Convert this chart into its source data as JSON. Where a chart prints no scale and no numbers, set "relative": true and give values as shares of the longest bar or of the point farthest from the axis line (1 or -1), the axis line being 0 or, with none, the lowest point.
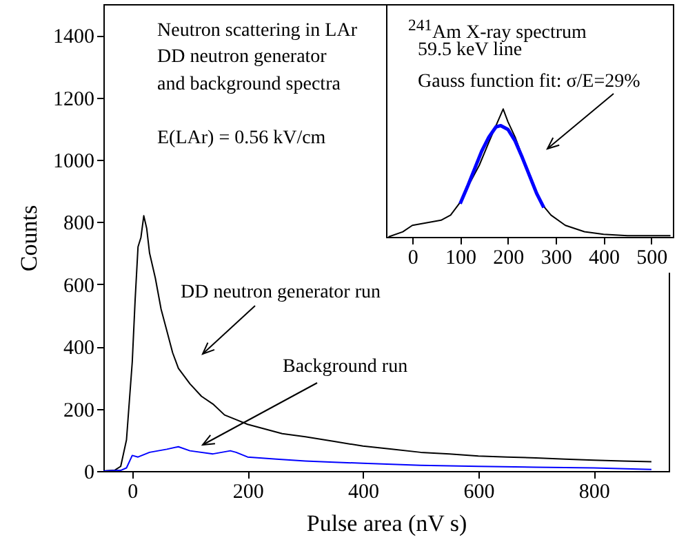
{
  "chart_data": [
    {
      "type": "line",
      "xlabel": "Pulse area (nV s)",
      "ylabel": "Counts",
      "xlim": [
        -50,
        930
      ],
      "ylim": [
        0,
        1500
      ],
      "xticks": [
        0,
        200,
        400,
        600,
        800
      ],
      "yticks": [
        0,
        200,
        400,
        600,
        800,
        1000,
        1200,
        1400
      ],
      "series": [
        {
          "color": "#000000",
          "x": [
            -50,
            -30,
            -20,
            -10,
            0,
            5,
            10,
            15,
            20,
            25,
            30,
            40,
            50,
            60,
            70,
            80,
            100,
            120,
            140,
            160,
            180,
            200,
            230,
            260,
            300,
            350,
            400,
            450,
            500,
            550,
            600,
            650,
            700,
            750,
            800,
            850,
            900
          ],
          "values": [
            0,
            3,
            15,
            100,
            350,
            550,
            720,
            750,
            820,
            780,
            700,
            620,
            520,
            450,
            380,
            330,
            280,
            240,
            215,
            180,
            165,
            150,
            135,
            120,
            110,
            95,
            80,
            70,
            60,
            55,
            48,
            45,
            42,
            38,
            35,
            32,
            30
          ]
        },
        {
          "color": "#0000ff",
          "x": [
            -50,
            -20,
            -10,
            0,
            10,
            30,
            60,
            80,
            100,
            140,
            170,
            180,
            200,
            250,
            300,
            350,
            400,
            500,
            600,
            700,
            800,
            900
          ],
          "values": [
            0,
            2,
            10,
            50,
            45,
            60,
            70,
            78,
            65,
            55,
            65,
            60,
            45,
            38,
            32,
            28,
            25,
            18,
            15,
            12,
            10,
            5
          ]
        }
      ],
      "annotations": [
        "Neutron scattering in LAr",
        "DD neutron generator",
        "and background spectra",
        "E(LAr) = 0.56 kV/cm",
        "DD neutron generator run",
        "Background run"
      ]
    },
    {
      "type": "line",
      "relative": true,
      "xlim": [
        -55,
        545
      ],
      "xticks": [
        0,
        100,
        200,
        300,
        400,
        500
      ],
      "series": [
        {
          "color": "#000000",
          "x": [
            -50,
            -20,
            0,
            30,
            60,
            80,
            100,
            120,
            140,
            160,
            175,
            190,
            200,
            215,
            230,
            250,
            270,
            290,
            320,
            360,
            400,
            450,
            500,
            540
          ],
          "values": [
            0,
            0.04,
            0.09,
            0.11,
            0.13,
            0.17,
            0.27,
            0.42,
            0.56,
            0.74,
            0.87,
            1,
            0.9,
            0.78,
            0.63,
            0.42,
            0.26,
            0.17,
            0.09,
            0.04,
            0.02,
            0.01,
            0.01,
            0.01
          ]
        },
        {
          "color": "#0000ff",
          "x": [
            100,
            115,
            130,
            145,
            160,
            175,
            185,
            200,
            215,
            230,
            245,
            260,
            275
          ],
          "values": [
            0.26,
            0.39,
            0.53,
            0.67,
            0.78,
            0.86,
            0.87,
            0.84,
            0.75,
            0.62,
            0.48,
            0.34,
            0.23
          ]
        }
      ],
      "annotations": [
        "$^{241}$Am X-ray spectrum",
        "59.5 keV line",
        "Gauss function fit: σ/E=29%"
      ]
    }
  ]
}
